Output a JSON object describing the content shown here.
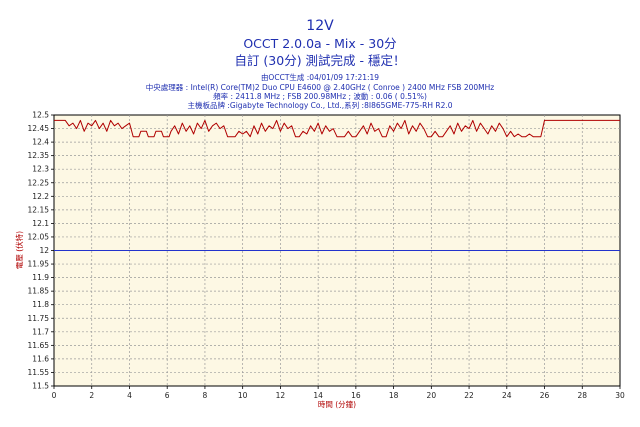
{
  "chart_data": {
    "type": "line",
    "title": "12V",
    "subtitle": "OCCT 2.0.0a - Mix - 30分",
    "status": "自訂 (30分) 測試完成 - 穩定！",
    "info": {
      "generated": "由OCCT生成 :04/01/09 17:21:19",
      "cpu": "中央處理器 : Intel(R) Core(TM)2 Duo CPU E4600 @ 2.40GHz ( Conroe ) 2400 MHz FSB 200MHz",
      "freq": "頻率 : 2411.8 MHz ; FSB 200.98MHz ; 波動 : 0.06 ( 0.51%)",
      "board": "主機板品牌 :Gigabyte Technology Co., Ltd.,系列 :8I865GME-775-RH R2.0"
    },
    "xlabel": "時間 (分鐘)",
    "ylabel": "電壓 (伏特)",
    "xlim": [
      0,
      30
    ],
    "ylim": [
      11.5,
      12.5
    ],
    "xticks": [
      "0",
      "2",
      "4",
      "6",
      "8",
      "10",
      "12",
      "14",
      "16",
      "18",
      "20",
      "22",
      "24",
      "26",
      "28",
      "30"
    ],
    "yticks": [
      "12.5",
      "12.45",
      "12.4",
      "12.35",
      "12.3",
      "12.25",
      "12.2",
      "12.15",
      "12.1",
      "12.05",
      "12",
      "11.95",
      "11.9",
      "11.85",
      "11.8",
      "11.75",
      "11.7",
      "11.65",
      "11.6",
      "11.55",
      "11.5"
    ],
    "grid": true,
    "series": [
      {
        "color": "#b00000",
        "x": [
          0,
          0.6,
          0.8,
          1.0,
          1.2,
          1.4,
          1.6,
          1.8,
          2.0,
          2.2,
          2.4,
          2.6,
          2.8,
          3.0,
          3.2,
          3.4,
          3.6,
          3.8,
          4.0,
          4.2,
          4.5,
          4.6,
          4.9,
          5.0,
          5.3,
          5.4,
          5.7,
          5.8,
          6.1,
          6.2,
          6.4,
          6.6,
          6.8,
          7.0,
          7.2,
          7.4,
          7.6,
          7.8,
          8.0,
          8.2,
          8.4,
          8.6,
          8.8,
          9.0,
          9.2,
          9.4,
          9.6,
          9.8,
          10.0,
          10.2,
          10.4,
          10.6,
          10.8,
          11.0,
          11.2,
          11.4,
          11.6,
          11.8,
          12.0,
          12.2,
          12.4,
          12.6,
          12.8,
          13.0,
          13.2,
          13.4,
          13.6,
          13.8,
          14.0,
          14.2,
          14.4,
          14.6,
          14.8,
          15.0,
          15.2,
          15.4,
          15.6,
          15.8,
          16.0,
          16.2,
          16.4,
          16.6,
          16.8,
          17.0,
          17.2,
          17.4,
          17.6,
          17.8,
          18.0,
          18.2,
          18.4,
          18.6,
          18.8,
          19.0,
          19.2,
          19.4,
          19.6,
          19.8,
          20.0,
          20.2,
          20.4,
          20.6,
          20.8,
          21.0,
          21.2,
          21.4,
          21.6,
          21.8,
          22.0,
          22.2,
          22.4,
          22.6,
          22.8,
          23.0,
          23.2,
          23.4,
          23.6,
          23.8,
          24.0,
          24.2,
          24.4,
          24.6,
          24.8,
          25.0,
          25.2,
          25.4,
          25.6,
          25.8,
          26.0,
          26.2,
          30.0
        ],
        "y": [
          12.48,
          12.48,
          12.46,
          12.47,
          12.45,
          12.48,
          12.44,
          12.47,
          12.46,
          12.48,
          12.45,
          12.47,
          12.44,
          12.48,
          12.46,
          12.47,
          12.45,
          12.46,
          12.47,
          12.42,
          12.42,
          12.44,
          12.44,
          12.42,
          12.42,
          12.44,
          12.44,
          12.42,
          12.42,
          12.44,
          12.46,
          12.43,
          12.47,
          12.44,
          12.46,
          12.43,
          12.47,
          12.45,
          12.48,
          12.44,
          12.46,
          12.47,
          12.45,
          12.46,
          12.42,
          12.42,
          12.42,
          12.44,
          12.43,
          12.44,
          12.42,
          12.46,
          12.43,
          12.47,
          12.44,
          12.46,
          12.45,
          12.48,
          12.44,
          12.47,
          12.45,
          12.46,
          12.42,
          12.42,
          12.44,
          12.43,
          12.46,
          12.44,
          12.47,
          12.43,
          12.46,
          12.44,
          12.45,
          12.42,
          12.42,
          12.42,
          12.44,
          12.42,
          12.42,
          12.44,
          12.46,
          12.43,
          12.47,
          12.44,
          12.45,
          12.42,
          12.42,
          12.46,
          12.44,
          12.47,
          12.45,
          12.48,
          12.43,
          12.46,
          12.44,
          12.47,
          12.45,
          12.42,
          12.42,
          12.44,
          12.42,
          12.42,
          12.44,
          12.46,
          12.43,
          12.47,
          12.44,
          12.46,
          12.45,
          12.48,
          12.44,
          12.47,
          12.45,
          12.43,
          12.46,
          12.44,
          12.47,
          12.45,
          12.42,
          12.44,
          12.42,
          12.43,
          12.42,
          12.42,
          12.43,
          12.42,
          12.42,
          12.42,
          12.48,
          12.48,
          12.48
        ]
      },
      {
        "color": "#2233cc",
        "x": [
          0,
          30
        ],
        "y": [
          12.0,
          12.0
        ]
      }
    ]
  }
}
